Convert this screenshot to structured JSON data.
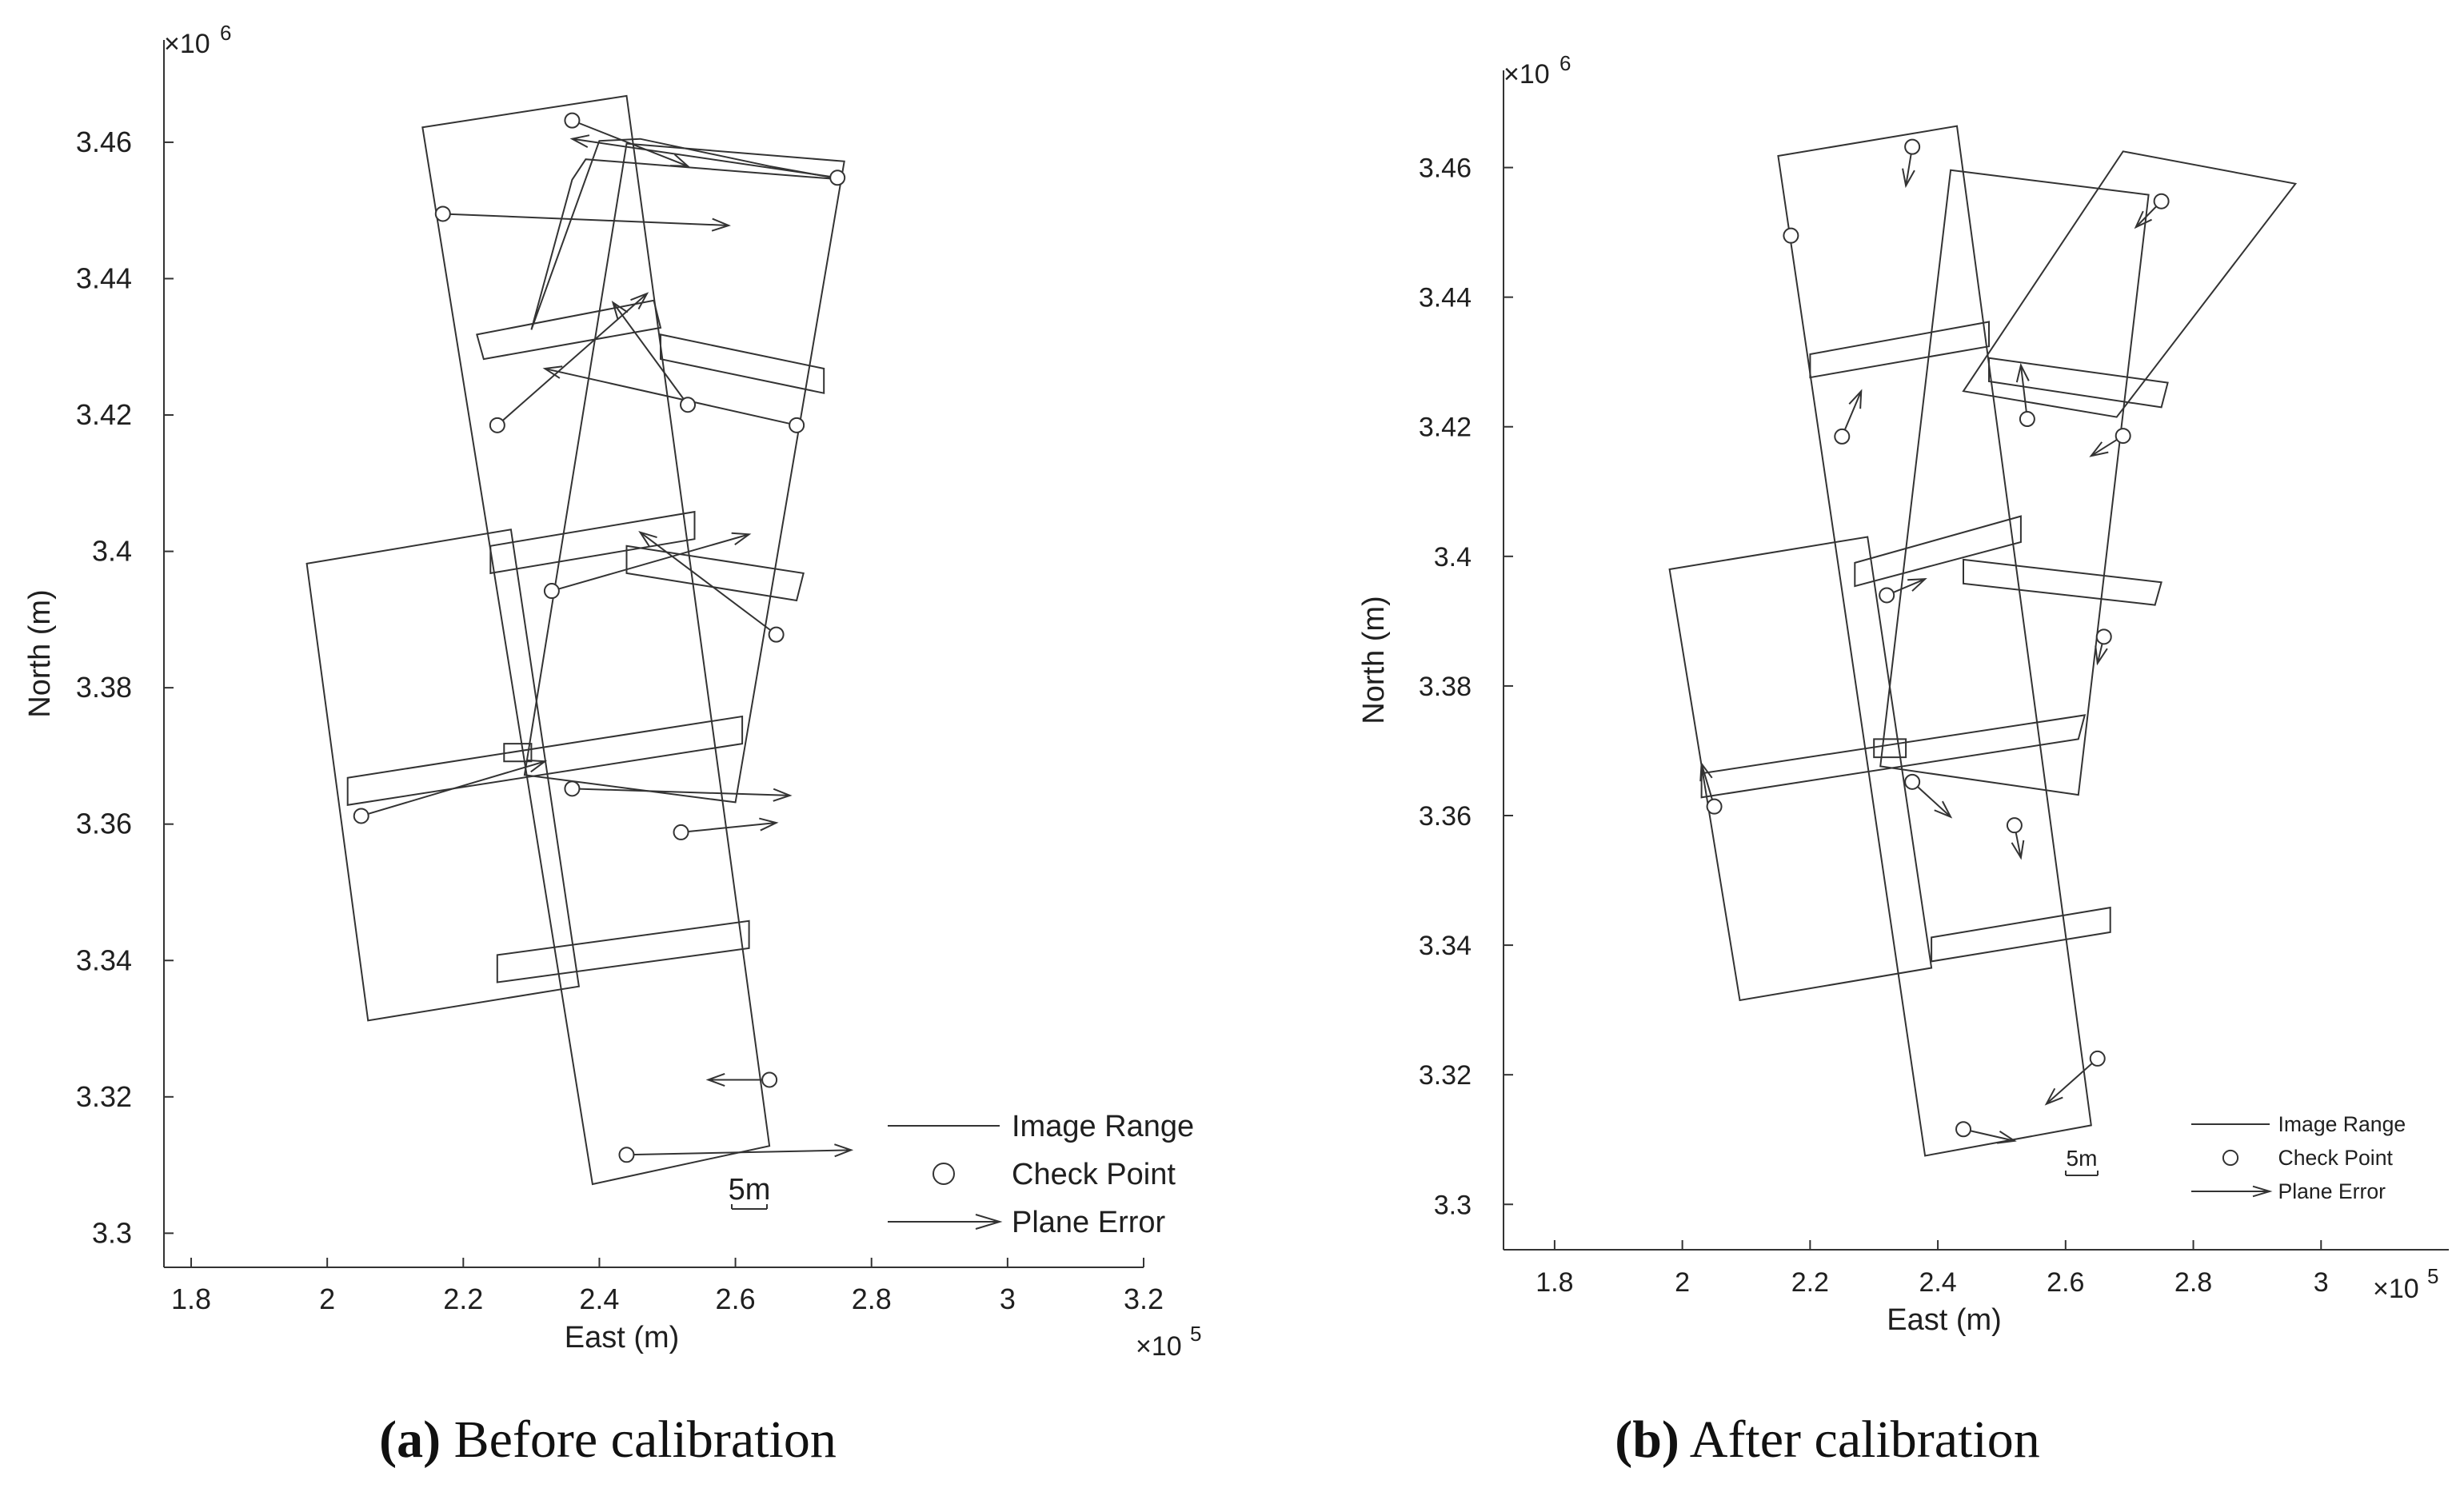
{
  "chart_data": [
    {
      "type": "scatter",
      "xlabel": "East (m)",
      "ylabel": "North (m)",
      "x_multiplier": "×10",
      "x_exponent": "5",
      "y_multiplier": "×10",
      "y_exponent": "6",
      "xlim": [
        1.76,
        3.2
      ],
      "ylim": [
        3.295,
        3.475
      ],
      "xticks": [
        {
          "v": 1.8,
          "label": "1.8"
        },
        {
          "v": 2.0,
          "label": "2"
        },
        {
          "v": 2.2,
          "label": "2.2"
        },
        {
          "v": 2.4,
          "label": "2.4"
        },
        {
          "v": 2.6,
          "label": "2.6"
        },
        {
          "v": 2.8,
          "label": "2.8"
        },
        {
          "v": 3.0,
          "label": "3"
        },
        {
          "v": 3.2,
          "label": "3.2"
        }
      ],
      "yticks": [
        {
          "v": 3.3,
          "label": "3.3"
        },
        {
          "v": 3.32,
          "label": "3.32"
        },
        {
          "v": 3.34,
          "label": "3.34"
        },
        {
          "v": 3.36,
          "label": "3.36"
        },
        {
          "v": 3.38,
          "label": "3.38"
        },
        {
          "v": 3.4,
          "label": "3.4"
        },
        {
          "v": 3.42,
          "label": "3.42"
        },
        {
          "v": 3.44,
          "label": "3.44"
        },
        {
          "v": 3.46,
          "label": "3.46"
        }
      ],
      "grid": false,
      "legend_position": "bottom-right",
      "legend": {
        "image_range": "Image Range",
        "check_point": "Check Point",
        "plane_error": "Plane Error"
      },
      "scale_bar_label": "5m",
      "caption_bold": "(a)",
      "caption_text": " Before calibration",
      "image_ranges": [
        [
          [
            2.14,
            3.4622
          ],
          [
            2.44,
            3.4668
          ],
          [
            2.65,
            3.3128
          ],
          [
            2.39,
            3.3072
          ]
        ],
        [
          [
            2.4,
            3.4602
          ],
          [
            2.46,
            3.4605
          ],
          [
            2.65,
            3.4565
          ],
          [
            2.76,
            3.4545
          ],
          [
            2.38,
            3.4575
          ],
          [
            2.36,
            3.4545
          ],
          [
            2.3,
            3.4325
          ]
        ],
        [
          [
            1.97,
            3.3982
          ],
          [
            2.27,
            3.4032
          ],
          [
            2.37,
            3.3362
          ],
          [
            2.06,
            3.3312
          ]
        ],
        [
          [
            2.44,
            3.4598
          ],
          [
            2.76,
            3.4572
          ],
          [
            2.6,
            3.3632
          ],
          [
            2.29,
            3.3672
          ]
        ],
        [
          [
            2.22,
            3.4318
          ],
          [
            2.48,
            3.4368
          ],
          [
            2.49,
            3.4328
          ],
          [
            2.23,
            3.4282
          ]
        ],
        [
          [
            2.49,
            3.4318
          ],
          [
            2.73,
            3.4268
          ],
          [
            2.73,
            3.4232
          ],
          [
            2.49,
            3.4282
          ]
        ],
        [
          [
            2.24,
            3.4008
          ],
          [
            2.54,
            3.4058
          ],
          [
            2.54,
            3.4018
          ],
          [
            2.24,
            3.3968
          ]
        ],
        [
          [
            2.44,
            3.4008
          ],
          [
            2.7,
            3.3968
          ],
          [
            2.69,
            3.3928
          ],
          [
            2.44,
            3.3968
          ]
        ],
        [
          [
            2.03,
            3.3668
          ],
          [
            2.61,
            3.3758
          ],
          [
            2.61,
            3.3718
          ],
          [
            2.03,
            3.3628
          ]
        ],
        [
          [
            2.25,
            3.3408
          ],
          [
            2.62,
            3.3458
          ],
          [
            2.62,
            3.3418
          ],
          [
            2.25,
            3.3368
          ]
        ],
        [
          [
            2.26,
            3.3718
          ],
          [
            2.3,
            3.3718
          ],
          [
            2.3,
            3.3692
          ],
          [
            2.26,
            3.3692
          ]
        ]
      ],
      "check_points": [
        [
          2.36,
          3.4632
        ],
        [
          2.75,
          3.4548
        ],
        [
          2.17,
          3.4495
        ],
        [
          2.25,
          3.4185
        ],
        [
          2.53,
          3.4215
        ],
        [
          2.69,
          3.4185
        ],
        [
          2.33,
          3.3942
        ],
        [
          2.66,
          3.3878
        ],
        [
          2.05,
          3.3612
        ],
        [
          2.36,
          3.3652
        ],
        [
          2.52,
          3.3588
        ],
        [
          2.65,
          3.3225
        ],
        [
          2.44,
          3.3115
        ]
      ],
      "plane_errors": [
        {
          "x": 2.36,
          "y": 3.4632,
          "x2": 2.53,
          "y2": 3.4565
        },
        {
          "x": 2.75,
          "y": 3.4548,
          "x2": 2.36,
          "y2": 3.4605
        },
        {
          "x": 2.17,
          "y": 3.4495,
          "x2": 2.59,
          "y2": 3.4478
        },
        {
          "x": 2.25,
          "y": 3.4185,
          "x2": 2.47,
          "y2": 3.4378
        },
        {
          "x": 2.53,
          "y": 3.4215,
          "x2": 2.42,
          "y2": 3.4365
        },
        {
          "x": 2.69,
          "y": 3.4185,
          "x2": 2.32,
          "y2": 3.4268
        },
        {
          "x": 2.33,
          "y": 3.3942,
          "x2": 2.62,
          "y2": 3.4025
        },
        {
          "x": 2.66,
          "y": 3.3878,
          "x2": 2.46,
          "y2": 3.4028
        },
        {
          "x": 2.05,
          "y": 3.3612,
          "x2": 2.32,
          "y2": 3.3692
        },
        {
          "x": 2.36,
          "y": 3.3652,
          "x2": 2.68,
          "y2": 3.3642
        },
        {
          "x": 2.52,
          "y": 3.3588,
          "x2": 2.66,
          "y2": 3.3602
        },
        {
          "x": 2.65,
          "y": 3.3225,
          "x2": 2.56,
          "y2": 3.3225
        },
        {
          "x": 2.44,
          "y": 3.3115,
          "x2": 2.77,
          "y2": 3.3122
        }
      ]
    },
    {
      "type": "scatter",
      "xlabel": "East (m)",
      "ylabel": "North (m)",
      "x_multiplier": "×10",
      "x_exponent": "5",
      "y_multiplier": "×10",
      "y_exponent": "6",
      "xlim": [
        1.72,
        3.2
      ],
      "ylim": [
        3.293,
        3.475
      ],
      "xticks": [
        {
          "v": 1.8,
          "label": "1.8"
        },
        {
          "v": 2.0,
          "label": "2"
        },
        {
          "v": 2.2,
          "label": "2.2"
        },
        {
          "v": 2.4,
          "label": "2.4"
        },
        {
          "v": 2.6,
          "label": "2.6"
        },
        {
          "v": 2.8,
          "label": "2.8"
        },
        {
          "v": 3.0,
          "label": "3"
        }
      ],
      "yticks": [
        {
          "v": 3.3,
          "label": "3.3"
        },
        {
          "v": 3.32,
          "label": "3.32"
        },
        {
          "v": 3.34,
          "label": "3.34"
        },
        {
          "v": 3.36,
          "label": "3.36"
        },
        {
          "v": 3.38,
          "label": "3.38"
        },
        {
          "v": 3.4,
          "label": "3.4"
        },
        {
          "v": 3.42,
          "label": "3.42"
        },
        {
          "v": 3.44,
          "label": "3.44"
        },
        {
          "v": 3.46,
          "label": "3.46"
        }
      ],
      "grid": false,
      "legend_position": "bottom-right",
      "legend": {
        "image_range": "Image Range",
        "check_point": "Check Point",
        "plane_error": "Plane Error"
      },
      "scale_bar_label": "5m",
      "caption_bold": "(b)",
      "caption_text": " After calibration",
      "image_ranges": [
        [
          [
            2.15,
            3.4618
          ],
          [
            2.43,
            3.4664
          ],
          [
            2.64,
            3.3122
          ],
          [
            2.38,
            3.3075
          ]
        ],
        [
          [
            2.42,
            3.4596
          ],
          [
            2.73,
            3.4558
          ],
          [
            2.62,
            3.3632
          ],
          [
            2.31,
            3.3676
          ]
        ],
        [
          [
            2.69,
            3.4625
          ],
          [
            2.96,
            3.4575
          ],
          [
            2.68,
            3.4215
          ],
          [
            2.44,
            3.4255
          ]
        ],
        [
          [
            1.98,
            3.398
          ],
          [
            2.29,
            3.403
          ],
          [
            2.39,
            3.3365
          ],
          [
            2.09,
            3.3315
          ]
        ],
        [
          [
            2.2,
            3.4312
          ],
          [
            2.48,
            3.4362
          ],
          [
            2.48,
            3.4324
          ],
          [
            2.2,
            3.4276
          ]
        ],
        [
          [
            2.48,
            3.4306
          ],
          [
            2.76,
            3.4268
          ],
          [
            2.75,
            3.423
          ],
          [
            2.48,
            3.427
          ]
        ],
        [
          [
            2.27,
            3.399
          ],
          [
            2.53,
            3.4062
          ],
          [
            2.53,
            3.4022
          ],
          [
            2.27,
            3.3954
          ]
        ],
        [
          [
            2.44,
            3.3995
          ],
          [
            2.75,
            3.396
          ],
          [
            2.74,
            3.3925
          ],
          [
            2.44,
            3.3958
          ]
        ],
        [
          [
            2.03,
            3.3665
          ],
          [
            2.63,
            3.3755
          ],
          [
            2.62,
            3.3718
          ],
          [
            2.03,
            3.3628
          ]
        ],
        [
          [
            2.39,
            3.3412
          ],
          [
            2.67,
            3.3458
          ],
          [
            2.67,
            3.342
          ],
          [
            2.39,
            3.3375
          ]
        ],
        [
          [
            2.3,
            3.3718
          ],
          [
            2.35,
            3.3718
          ],
          [
            2.35,
            3.369
          ],
          [
            2.3,
            3.369
          ]
        ]
      ],
      "check_points": [
        [
          2.36,
          3.4632
        ],
        [
          2.75,
          3.4548
        ],
        [
          2.17,
          3.4495
        ],
        [
          2.25,
          3.4185
        ],
        [
          2.54,
          3.4212
        ],
        [
          2.69,
          3.4186
        ],
        [
          2.32,
          3.394
        ],
        [
          2.66,
          3.3876
        ],
        [
          2.05,
          3.3614
        ],
        [
          2.36,
          3.3652
        ],
        [
          2.52,
          3.3585
        ],
        [
          2.65,
          3.3225
        ],
        [
          2.44,
          3.3116
        ]
      ],
      "plane_errors": [
        {
          "x": 2.36,
          "y": 3.4632,
          "x2": 2.35,
          "y2": 3.4572
        },
        {
          "x": 2.75,
          "y": 3.4548,
          "x2": 2.71,
          "y2": 3.4508
        },
        {
          "x": 2.25,
          "y": 3.4185,
          "x2": 2.28,
          "y2": 3.4255
        },
        {
          "x": 2.54,
          "y": 3.4212,
          "x2": 2.53,
          "y2": 3.4295
        },
        {
          "x": 2.69,
          "y": 3.4186,
          "x2": 2.64,
          "y2": 3.4155
        },
        {
          "x": 2.32,
          "y": 3.394,
          "x2": 2.38,
          "y2": 3.3965
        },
        {
          "x": 2.66,
          "y": 3.3876,
          "x2": 2.65,
          "y2": 3.3835
        },
        {
          "x": 2.05,
          "y": 3.3614,
          "x2": 2.03,
          "y2": 3.368
        },
        {
          "x": 2.36,
          "y": 3.3652,
          "x2": 2.42,
          "y2": 3.3598
        },
        {
          "x": 2.52,
          "y": 3.3585,
          "x2": 2.53,
          "y2": 3.3535
        },
        {
          "x": 2.65,
          "y": 3.3225,
          "x2": 2.57,
          "y2": 3.3155
        },
        {
          "x": 2.44,
          "y": 3.3116,
          "x2": 2.52,
          "y2": 3.3098
        }
      ]
    }
  ]
}
